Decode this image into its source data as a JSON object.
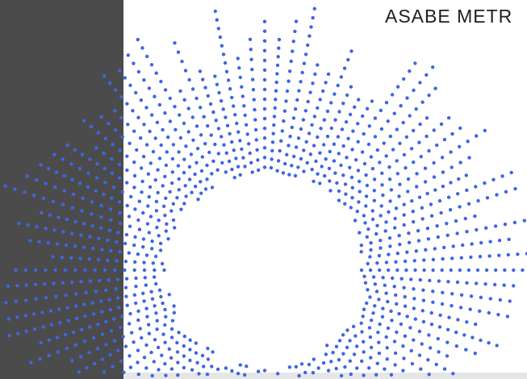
{
  "header": {
    "title": "ASABE METR"
  }
}
